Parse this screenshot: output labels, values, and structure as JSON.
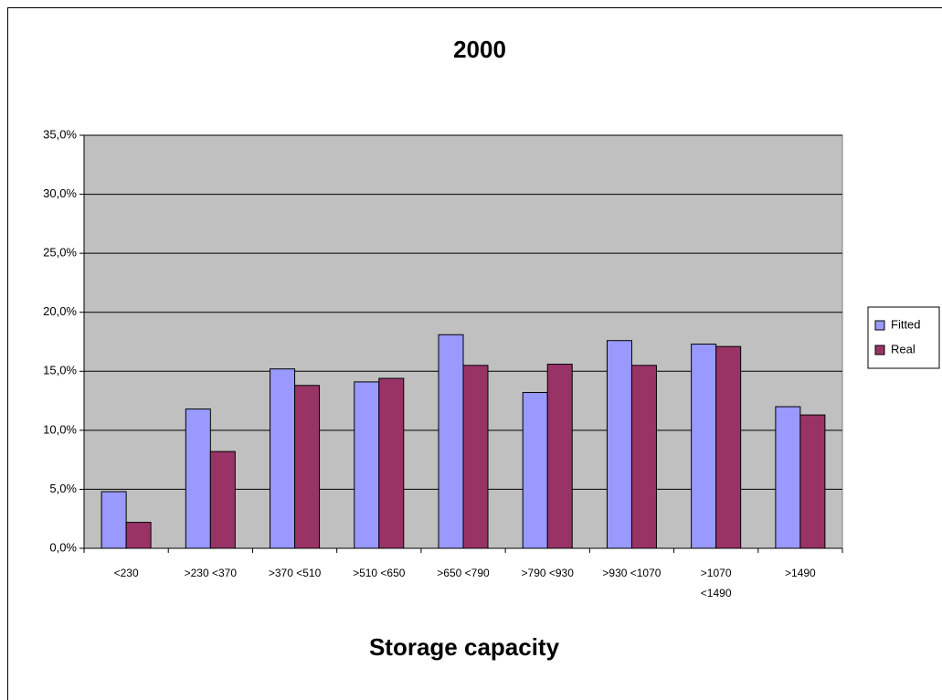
{
  "chart_data": {
    "type": "bar",
    "title": "2000",
    "x_label": "Storage capacity",
    "categories": [
      "<230",
      ">230 <370",
      ">370 <510",
      ">510 <650",
      ">650 <790",
      ">790 <930",
      ">930 <1070",
      ">1070 <1490",
      ">1490"
    ],
    "series": [
      {
        "name": "Fitted",
        "color": "#9999ff",
        "values": [
          4.8,
          11.8,
          15.2,
          14.1,
          18.1,
          13.2,
          17.6,
          17.3,
          12.0
        ]
      },
      {
        "name": "Real",
        "color": "#993366",
        "values": [
          2.2,
          8.2,
          13.8,
          14.4,
          15.5,
          15.6,
          15.5,
          17.1,
          11.3
        ]
      }
    ],
    "ylim": [
      0,
      35
    ],
    "yticks": [
      {
        "value": 0,
        "label": "0,0%"
      },
      {
        "value": 5,
        "label": "5,0%"
      },
      {
        "value": 10,
        "label": "10,0%"
      },
      {
        "value": 15,
        "label": "15,0%"
      },
      {
        "value": 20,
        "label": "20,0%"
      },
      {
        "value": 25,
        "label": "25,0%"
      },
      {
        "value": 30,
        "label": "30,0%"
      },
      {
        "value": 35,
        "label": "35,0%"
      }
    ],
    "grid": true,
    "legend": "right",
    "plot_background": "#c0c0c0"
  }
}
